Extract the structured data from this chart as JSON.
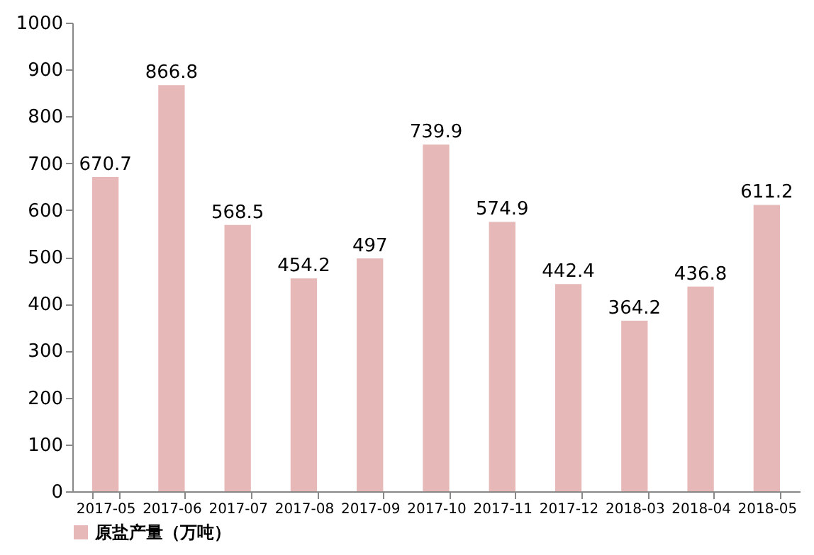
{
  "chart_data": {
    "type": "bar",
    "categories": [
      "2017-05",
      "2017-06",
      "2017-07",
      "2017-08",
      "2017-09",
      "2017-10",
      "2017-11",
      "2017-12",
      "2018-03",
      "2018-04",
      "2018-05"
    ],
    "series": [
      {
        "name": "原盐产量（万吨）",
        "color": "#e6b8b7",
        "values": [
          670.7,
          866.8,
          568.5,
          454.2,
          497,
          739.9,
          574.9,
          442.4,
          364.2,
          436.8,
          611.2
        ]
      }
    ],
    "ylim": [
      0,
      1000
    ],
    "yticks": [
      0,
      100,
      200,
      300,
      400,
      500,
      600,
      700,
      800,
      900,
      1000
    ],
    "data_labels": true,
    "grid": false,
    "legend": "bottom left"
  }
}
